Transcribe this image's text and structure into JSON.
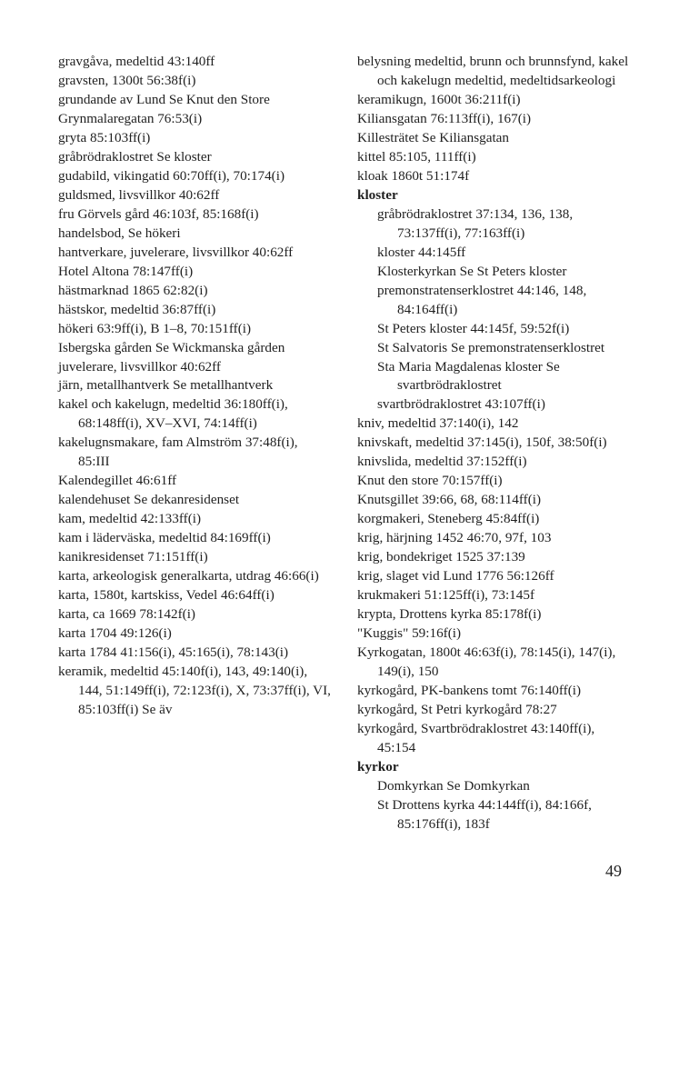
{
  "page_number": "49",
  "left_column": [
    {
      "t": "entry",
      "text": "gravgåva, medeltid 43:140ff"
    },
    {
      "t": "entry",
      "text": "gravsten, 1300t 56:38f(i)"
    },
    {
      "t": "entry",
      "text": "grundande av Lund Se Knut den Store"
    },
    {
      "t": "entry",
      "text": "Grynmalaregatan 76:53(i)"
    },
    {
      "t": "entry",
      "text": "gryta 85:103ff(i)"
    },
    {
      "t": "entry",
      "text": "gråbrödraklostret Se kloster"
    },
    {
      "t": "entry",
      "text": "gudabild, vikingatid 60:70ff(i), 70:174(i)"
    },
    {
      "t": "entry",
      "text": "guldsmed, livsvillkor 40:62ff"
    },
    {
      "t": "entry",
      "text": "fru Görvels gård 46:103f, 85:168f(i)"
    },
    {
      "t": "entry",
      "text": "handelsbod, Se hökeri"
    },
    {
      "t": "entry",
      "text": "hantverkare, juvelerare, livsvillkor 40:62ff"
    },
    {
      "t": "entry",
      "text": "Hotel Altona 78:147ff(i)"
    },
    {
      "t": "entry",
      "text": "hästmarknad 1865 62:82(i)"
    },
    {
      "t": "entry",
      "text": "hästskor, medeltid 36:87ff(i)"
    },
    {
      "t": "entry",
      "text": "hökeri 63:9ff(i), B 1–8, 70:151ff(i)"
    },
    {
      "t": "entry",
      "text": "Isbergska gården Se Wickmanska gården"
    },
    {
      "t": "entry",
      "text": "juvelerare, livsvillkor 40:62ff"
    },
    {
      "t": "entry",
      "text": "järn, metallhantverk Se metallhantverk"
    },
    {
      "t": "entry",
      "text": "kakel och kakelugn, medeltid 36:180ff(i), 68:148ff(i), XV–XVI, 74:14ff(i)"
    },
    {
      "t": "entry",
      "text": "kakelugnsmakare, fam Almström 37:48f(i), 85:III"
    },
    {
      "t": "entry",
      "text": "Kalendegillet 46:61ff"
    },
    {
      "t": "entry",
      "text": "kalendehuset Se dekanresidenset"
    },
    {
      "t": "entry",
      "text": "kam, medeltid 42:133ff(i)"
    },
    {
      "t": "entry",
      "text": "kam i läderväska, medeltid 84:169ff(i)"
    },
    {
      "t": "entry",
      "text": "kanikresidenset 71:151ff(i)"
    },
    {
      "t": "entry",
      "text": "karta, arkeologisk generalkarta, utdrag 46:66(i)"
    },
    {
      "t": "entry",
      "text": "karta, 1580t, kartskiss, Vedel 46:64ff(i)"
    },
    {
      "t": "entry",
      "text": "karta, ca 1669 78:142f(i)"
    },
    {
      "t": "entry",
      "text": "karta 1704 49:126(i)"
    },
    {
      "t": "entry",
      "text": "karta 1784 41:156(i), 45:165(i), 78:143(i)"
    },
    {
      "t": "entry",
      "text": "keramik, medeltid 45:140f(i), 143, 49:140(i), 144, 51:149ff(i), 72:123f(i), X, 73:37ff(i), VI, 85:103ff(i) Se äv"
    }
  ],
  "right_column": [
    {
      "t": "entry",
      "text": "belysning medeltid,  brunn och brunnsfynd,  kakel och kakelugn medeltid,  medeltidsarkeologi"
    },
    {
      "t": "entry",
      "text": "keramikugn, 1600t 36:211f(i)"
    },
    {
      "t": "entry",
      "text": "Kiliansgatan 76:113ff(i), 167(i)"
    },
    {
      "t": "entry",
      "text": "Killesträtet Se Kiliansgatan"
    },
    {
      "t": "entry",
      "text": "kittel 85:105, 111ff(i)"
    },
    {
      "t": "entry",
      "text": "kloak 1860t 51:174f"
    },
    {
      "t": "entry",
      "text": "kloster",
      "bold": true
    },
    {
      "t": "sub",
      "text": "gråbrödraklostret 37:134, 136, 138, 73:137ff(i), 77:163ff(i)"
    },
    {
      "t": "sub",
      "text": "kloster 44:145ff"
    },
    {
      "t": "sub",
      "text": "Klosterkyrkan Se St Peters kloster"
    },
    {
      "t": "sub",
      "text": "premonstratenserklostret 44:146, 148, 84:164ff(i)"
    },
    {
      "t": "sub",
      "text": "St Peters kloster 44:145f, 59:52f(i)"
    },
    {
      "t": "sub",
      "text": "St Salvatoris Se premonstratenserklostret"
    },
    {
      "t": "sub",
      "text": "Sta Maria Magdalenas kloster Se svartbrödraklostret"
    },
    {
      "t": "sub",
      "text": "svartbrödraklostret 43:107ff(i)"
    },
    {
      "t": "entry",
      "text": "kniv, medeltid 37:140(i), 142"
    },
    {
      "t": "entry",
      "text": "knivskaft, medeltid 37:145(i), 150f, 38:50f(i)"
    },
    {
      "t": "entry",
      "text": "knivslida, medeltid 37:152ff(i)"
    },
    {
      "t": "entry",
      "text": "Knut den store 70:157ff(i)"
    },
    {
      "t": "entry",
      "text": "Knutsgillet 39:66, 68, 68:114ff(i)"
    },
    {
      "t": "entry",
      "text": "korgmakeri, Steneberg 45:84ff(i)"
    },
    {
      "t": "entry",
      "text": "krig, härjning 1452  46:70, 97f, 103"
    },
    {
      "t": "entry",
      "text": "krig, bondekriget 1525  37:139"
    },
    {
      "t": "entry",
      "text": "krig, slaget vid Lund 1776  56:126ff"
    },
    {
      "t": "entry",
      "text": "krukmakeri 51:125ff(i), 73:145f"
    },
    {
      "t": "entry",
      "text": "krypta, Drottens kyrka 85:178f(i)"
    },
    {
      "t": "entry",
      "text": "\"Kuggis\" 59:16f(i)"
    },
    {
      "t": "entry",
      "text": "Kyrkogatan, 1800t  46:63f(i), 78:145(i), 147(i), 149(i), 150"
    },
    {
      "t": "entry",
      "text": "kyrkogård, PK-bankens tomt 76:140ff(i)"
    },
    {
      "t": "entry",
      "text": "kyrkogård, St Petri kyrkogård 78:27"
    },
    {
      "t": "entry",
      "text": "kyrkogård, Svartbrödraklostret 43:140ff(i), 45:154"
    },
    {
      "t": "entry",
      "text": "kyrkor",
      "bold": true
    },
    {
      "t": "sub",
      "text": "Domkyrkan Se Domkyrkan"
    },
    {
      "t": "sub",
      "text": "St Drottens kyrka 44:144ff(i), 84:166f, 85:176ff(i), 183f"
    }
  ]
}
